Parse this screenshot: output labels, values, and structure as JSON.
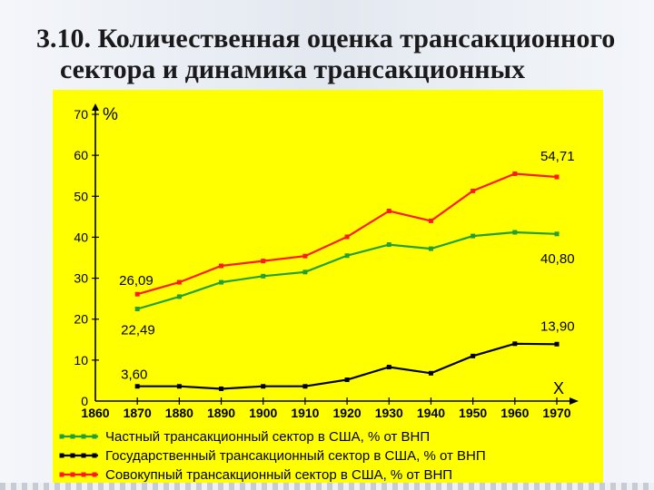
{
  "slide": {
    "title_line1": "3.10. Количественная оценка трансакционного",
    "title_line2": "сектора и динамика трансакционных издержек"
  },
  "chart_data": {
    "type": "line",
    "title": "",
    "ylabel": "%",
    "xlabel": "X",
    "x": [
      1860,
      1870,
      1880,
      1890,
      1900,
      1910,
      1920,
      1930,
      1940,
      1950,
      1960,
      1970
    ],
    "ylim": [
      0,
      70
    ],
    "yticks": [
      0,
      10,
      20,
      30,
      40,
      50,
      60,
      70
    ],
    "grid": false,
    "legend_position": "bottom",
    "background": "#ffff00",
    "series": [
      {
        "name": "Частный трансакционный сектор в США, % от ВНП",
        "color": "#22a035",
        "x": [
          1870,
          1880,
          1890,
          1900,
          1910,
          1920,
          1930,
          1940,
          1950,
          1960,
          1970
        ],
        "values": [
          22.49,
          25.5,
          29,
          30.5,
          31.5,
          35.5,
          38.2,
          37.2,
          40.3,
          41.2,
          40.8
        ]
      },
      {
        "name": "Государственный трансакционный сектор в США, % от ВНП",
        "color": "#000000",
        "x": [
          1870,
          1880,
          1890,
          1900,
          1910,
          1920,
          1930,
          1940,
          1950,
          1960,
          1970
        ],
        "values": [
          3.6,
          3.6,
          3,
          3.6,
          3.6,
          5.2,
          8.3,
          6.8,
          11,
          14,
          13.9
        ]
      },
      {
        "name": "Совокупный трансакционный сектор в США, % от ВНП",
        "color": "#ff1a1a",
        "x": [
          1870,
          1880,
          1890,
          1900,
          1910,
          1920,
          1930,
          1940,
          1950,
          1960,
          1970
        ],
        "values": [
          26.09,
          29,
          33,
          34.2,
          35.4,
          40.1,
          46.4,
          44,
          51.3,
          55.5,
          54.71
        ]
      }
    ],
    "annotations": [
      {
        "text": "54,71",
        "series": 2,
        "at": "end"
      },
      {
        "text": "40,80",
        "series": 0,
        "at": "end"
      },
      {
        "text": "13,90",
        "series": 1,
        "at": "end"
      },
      {
        "text": "26,09",
        "series": 2,
        "at": "start"
      },
      {
        "text": "22,49",
        "series": 0,
        "at": "start"
      },
      {
        "text": "3,60",
        "series": 1,
        "at": "start"
      }
    ]
  }
}
